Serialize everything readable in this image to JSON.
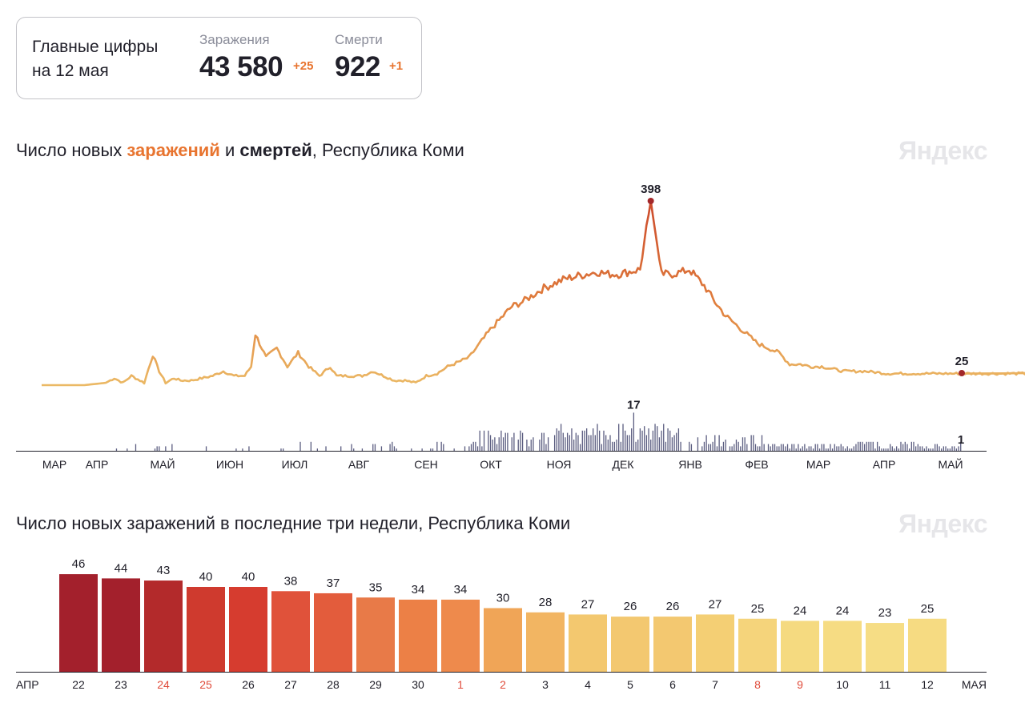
{
  "summary": {
    "heading_line1": "Главные цифры",
    "heading_line2": "на 12 мая",
    "infections": {
      "label": "Заражения",
      "value": "43 580",
      "delta": "+25"
    },
    "deaths": {
      "label": "Смерти",
      "value": "922",
      "delta": "+1"
    }
  },
  "colors": {
    "accent": "#e8742f",
    "peak_marker": "#a3282a",
    "line_low": "#ebb965",
    "line_high": "#cc4a2c",
    "deaths_bar": "#5b5d80"
  },
  "watermark": "Яндекс",
  "chart_data": [
    {
      "type": "line",
      "title": "Число новых заражений и смертей, Республика Коми",
      "title_parts": {
        "prefix": "Число новых ",
        "infections": "заражений",
        "mid": " и ",
        "deaths": "смертей",
        "suffix": ", Республика Коми"
      },
      "month_labels": [
        "МАР",
        "АПР",
        "МАЙ",
        "ИЮН",
        "ИЮЛ",
        "АВГ",
        "СЕН",
        "ОКТ",
        "НОЯ",
        "ДЕК",
        "ЯНВ",
        "ФЕВ",
        "МАР",
        "АПР",
        "МАЙ"
      ],
      "series": [
        {
          "name": "Новые заражения",
          "x_days": [
            0,
            5,
            20,
            30,
            34,
            38,
            42,
            48,
            52,
            55,
            58,
            62,
            65,
            70,
            75,
            80,
            85,
            90,
            95,
            98,
            100,
            105,
            110,
            115,
            120,
            125,
            130,
            135,
            138,
            145,
            150,
            155,
            160,
            165,
            170,
            175,
            180,
            185,
            190,
            200,
            205,
            210,
            215,
            220,
            225,
            230,
            235,
            240,
            245,
            250,
            255,
            260,
            265,
            270,
            275,
            280,
            285,
            290,
            295,
            300,
            303,
            305,
            310,
            315,
            320,
            325,
            330,
            335,
            340,
            345,
            350,
            355,
            360,
            365,
            370,
            375,
            380,
            385,
            390,
            395,
            400,
            405,
            410,
            415,
            420,
            430,
            440,
            450,
            460,
            470,
            430.5
          ],
          "values": [
            0,
            0,
            0,
            5,
            15,
            5,
            20,
            5,
            65,
            30,
            5,
            15,
            10,
            10,
            15,
            20,
            30,
            20,
            20,
            40,
            110,
            60,
            80,
            40,
            70,
            40,
            20,
            40,
            20,
            20,
            20,
            30,
            20,
            10,
            10,
            5,
            20,
            25,
            40,
            60,
            90,
            120,
            145,
            170,
            180,
            195,
            210,
            220,
            230,
            235,
            240,
            245,
            240,
            240,
            245,
            250,
            398,
            240,
            240,
            245,
            250,
            240,
            215,
            180,
            150,
            130,
            110,
            90,
            80,
            70,
            45,
            45,
            40,
            40,
            35,
            30,
            30,
            30,
            28,
            25,
            25,
            25,
            25,
            25,
            25,
            25,
            25,
            25,
            25,
            25,
            25
          ],
          "last_label": "25",
          "peak_label": "398"
        },
        {
          "name": "Новые смерти",
          "peak_label": "17",
          "last_label": "1"
        }
      ]
    },
    {
      "type": "bar",
      "title": "Число новых заражений в последние три недели, Республика Коми",
      "categories": [
        "22",
        "23",
        "24",
        "25",
        "26",
        "27",
        "28",
        "29",
        "30",
        "1",
        "2",
        "3",
        "4",
        "5",
        "6",
        "7",
        "8",
        "9",
        "10",
        "11",
        "12"
      ],
      "weekend_days": [
        "24",
        "25",
        "1",
        "2",
        "8",
        "9"
      ],
      "values": [
        46,
        44,
        43,
        40,
        40,
        38,
        37,
        35,
        34,
        34,
        30,
        28,
        27,
        26,
        26,
        27,
        25,
        24,
        24,
        23,
        25
      ],
      "x_start_label": "АПР",
      "x_end_label": "МАЯ",
      "bar_colors": [
        "#a3202c",
        "#a3202c",
        "#b32a2b",
        "#cf3a2e",
        "#d63c2f",
        "#e0523a",
        "#e35c3c",
        "#e87a48",
        "#ec8046",
        "#ee8a4c",
        "#f0a557",
        "#f2b562",
        "#f3c86f",
        "#f3c870",
        "#f3c870",
        "#f4cf74",
        "#f5d47b",
        "#f5da80",
        "#f6dc83",
        "#f6dd85",
        "#f6db82"
      ]
    }
  ]
}
